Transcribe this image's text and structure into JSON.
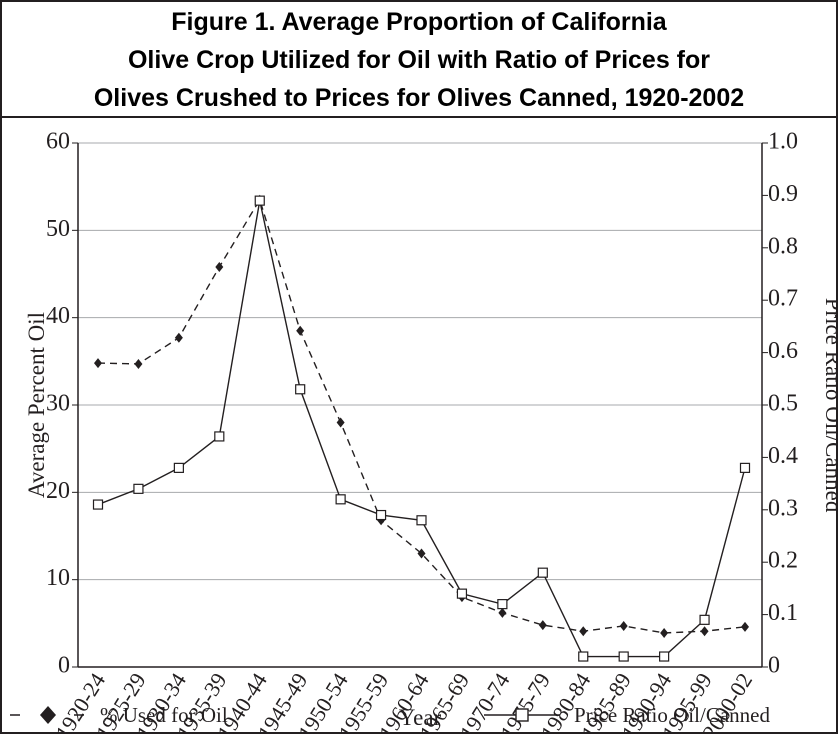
{
  "chart_data": {
    "type": "line",
    "title": [
      "Figure 1. Average Proportion of California",
      "Olive Crop Utilized for Oil with Ratio of Prices for",
      "Olives Crushed to Prices for Olives Canned, 1920-2002"
    ],
    "x_label": "Year",
    "y_label": "Average Percent Oil",
    "y2_label": "Price Ratio Oil/Canned",
    "categories": [
      "1920-24",
      "1925-29",
      "1930-34",
      "1935-39",
      "1940-44",
      "1945-49",
      "1950-54",
      "1955-59",
      "1960-64",
      "1965-69",
      "1970-74",
      "1975-79",
      "1980-84",
      "1985-89",
      "1990-94",
      "1995-99",
      "2000-02"
    ],
    "ylim": [
      0,
      60
    ],
    "yticks": [
      0,
      10,
      20,
      30,
      40,
      50,
      60
    ],
    "y2lim": [
      0,
      1
    ],
    "y2ticks": [
      0,
      0.1,
      0.2,
      0.3,
      0.4,
      0.5,
      0.6,
      0.7,
      0.8,
      0.9,
      {
        "value": 1,
        "label": "1.0"
      }
    ],
    "grid": true,
    "series": [
      {
        "name": "% Used for Oil",
        "color": "#231f20",
        "marker": "diamond",
        "dash": true,
        "values": [
          34.8,
          34.7,
          37.7,
          45.8,
          53.5,
          38.5,
          28,
          16.8,
          13,
          8,
          6.2,
          4.8,
          4.1,
          4.7,
          3.9,
          4.1,
          4.6
        ]
      },
      {
        "name": "Price Ratio Oil/Canned",
        "color": "#231f20",
        "marker": "square",
        "dash": false,
        "axis": "y2",
        "values": [
          0.31,
          0.34,
          0.38,
          0.44,
          0.89,
          0.53,
          0.32,
          0.29,
          0.28,
          0.14,
          0.12,
          0.18,
          0.02,
          0.02,
          0.02,
          0.09,
          0.38
        ]
      }
    ]
  }
}
